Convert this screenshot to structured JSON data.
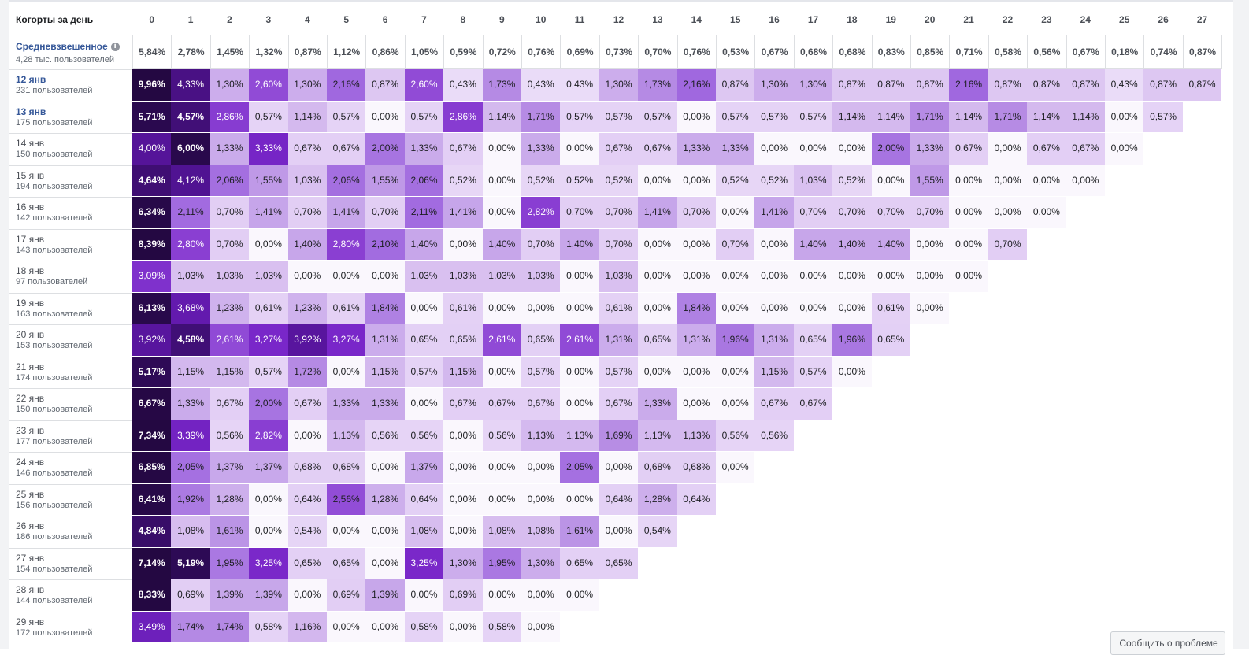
{
  "header": {
    "title": "Когорты за день",
    "columns": [
      "0",
      "1",
      "2",
      "3",
      "4",
      "5",
      "6",
      "7",
      "8",
      "9",
      "10",
      "11",
      "12",
      "13",
      "14",
      "15",
      "16",
      "17",
      "18",
      "19",
      "20",
      "21",
      "22",
      "23",
      "24",
      "25",
      "26",
      "27"
    ]
  },
  "average": {
    "title": "Средневзвешенное",
    "subtitle": "4,28 тыс. пользователей",
    "values": [
      "5,84%",
      "2,78%",
      "1,45%",
      "1,32%",
      "0,87%",
      "1,12%",
      "0,86%",
      "1,05%",
      "0,59%",
      "0,72%",
      "0,76%",
      "0,69%",
      "0,73%",
      "0,70%",
      "0,76%",
      "0,53%",
      "0,67%",
      "0,68%",
      "0,68%",
      "0,83%",
      "0,85%",
      "0,71%",
      "0,58%",
      "0,56%",
      "0,67%",
      "0,18%",
      "0,74%",
      "0,87%"
    ]
  },
  "cohorts": [
    {
      "date": "12 янв",
      "users": "231 пользователей",
      "link": true,
      "values": [
        "9,96%",
        "4,33%",
        "1,30%",
        "2,60%",
        "1,30%",
        "2,16%",
        "0,87%",
        "2,60%",
        "0,43%",
        "1,73%",
        "0,43%",
        "0,43%",
        "1,30%",
        "1,73%",
        "2,16%",
        "0,87%",
        "1,30%",
        "1,30%",
        "0,87%",
        "0,87%",
        "0,87%",
        "2,16%",
        "0,87%",
        "0,87%",
        "0,87%",
        "0,43%",
        "0,87%",
        "0,87%"
      ]
    },
    {
      "date": "13 янв",
      "users": "175 пользователей",
      "link": true,
      "values": [
        "5,71%",
        "4,57%",
        "2,86%",
        "0,57%",
        "1,14%",
        "0,57%",
        "0,00%",
        "0,57%",
        "2,86%",
        "1,14%",
        "1,71%",
        "0,57%",
        "0,57%",
        "0,57%",
        "0,00%",
        "0,57%",
        "0,57%",
        "0,57%",
        "1,14%",
        "1,14%",
        "1,71%",
        "1,14%",
        "1,71%",
        "1,14%",
        "1,14%",
        "0,00%",
        "0,57%"
      ]
    },
    {
      "date": "14 янв",
      "users": "150 пользователей",
      "link": false,
      "values": [
        "4,00%",
        "6,00%",
        "1,33%",
        "3,33%",
        "0,67%",
        "0,67%",
        "2,00%",
        "1,33%",
        "0,67%",
        "0,00%",
        "1,33%",
        "0,00%",
        "0,67%",
        "0,67%",
        "1,33%",
        "1,33%",
        "0,00%",
        "0,00%",
        "0,00%",
        "2,00%",
        "1,33%",
        "0,67%",
        "0,00%",
        "0,67%",
        "0,67%",
        "0,00%"
      ]
    },
    {
      "date": "15 янв",
      "users": "194 пользователей",
      "link": false,
      "values": [
        "4,64%",
        "4,12%",
        "2,06%",
        "1,55%",
        "1,03%",
        "2,06%",
        "1,55%",
        "2,06%",
        "0,52%",
        "0,00%",
        "0,52%",
        "0,52%",
        "0,52%",
        "0,00%",
        "0,00%",
        "0,52%",
        "0,52%",
        "1,03%",
        "0,52%",
        "0,00%",
        "1,55%",
        "0,00%",
        "0,00%",
        "0,00%",
        "0,00%"
      ]
    },
    {
      "date": "16 янв",
      "users": "142 пользователей",
      "link": false,
      "values": [
        "6,34%",
        "2,11%",
        "0,70%",
        "1,41%",
        "0,70%",
        "1,41%",
        "0,70%",
        "2,11%",
        "1,41%",
        "0,00%",
        "2,82%",
        "0,70%",
        "0,70%",
        "1,41%",
        "0,70%",
        "0,00%",
        "1,41%",
        "0,70%",
        "0,70%",
        "0,70%",
        "0,70%",
        "0,00%",
        "0,00%",
        "0,00%"
      ]
    },
    {
      "date": "17 янв",
      "users": "143 пользователей",
      "link": false,
      "values": [
        "8,39%",
        "2,80%",
        "0,70%",
        "0,00%",
        "1,40%",
        "2,80%",
        "2,10%",
        "1,40%",
        "0,00%",
        "1,40%",
        "0,70%",
        "1,40%",
        "0,70%",
        "0,00%",
        "0,00%",
        "0,70%",
        "0,00%",
        "1,40%",
        "1,40%",
        "1,40%",
        "0,00%",
        "0,00%",
        "0,70%"
      ]
    },
    {
      "date": "18 янв",
      "users": "97 пользователей",
      "link": false,
      "values": [
        "3,09%",
        "1,03%",
        "1,03%",
        "1,03%",
        "0,00%",
        "0,00%",
        "0,00%",
        "1,03%",
        "1,03%",
        "1,03%",
        "1,03%",
        "0,00%",
        "1,03%",
        "0,00%",
        "0,00%",
        "0,00%",
        "0,00%",
        "0,00%",
        "0,00%",
        "0,00%",
        "0,00%",
        "0,00%"
      ]
    },
    {
      "date": "19 янв",
      "users": "163 пользователей",
      "link": false,
      "values": [
        "6,13%",
        "3,68%",
        "1,23%",
        "0,61%",
        "1,23%",
        "0,61%",
        "1,84%",
        "0,00%",
        "0,61%",
        "0,00%",
        "0,00%",
        "0,00%",
        "0,61%",
        "0,00%",
        "1,84%",
        "0,00%",
        "0,00%",
        "0,00%",
        "0,00%",
        "0,61%",
        "0,00%"
      ]
    },
    {
      "date": "20 янв",
      "users": "153 пользователей",
      "link": false,
      "values": [
        "3,92%",
        "4,58%",
        "2,61%",
        "3,27%",
        "3,92%",
        "3,27%",
        "1,31%",
        "0,65%",
        "0,65%",
        "2,61%",
        "0,65%",
        "2,61%",
        "1,31%",
        "0,65%",
        "1,31%",
        "1,96%",
        "1,31%",
        "0,65%",
        "1,96%",
        "0,65%"
      ]
    },
    {
      "date": "21 янв",
      "users": "174 пользователей",
      "link": false,
      "values": [
        "5,17%",
        "1,15%",
        "1,15%",
        "0,57%",
        "1,72%",
        "0,00%",
        "1,15%",
        "0,57%",
        "1,15%",
        "0,00%",
        "0,57%",
        "0,00%",
        "0,57%",
        "0,00%",
        "0,00%",
        "0,00%",
        "1,15%",
        "0,57%",
        "0,00%"
      ]
    },
    {
      "date": "22 янв",
      "users": "150 пользователей",
      "link": false,
      "values": [
        "6,67%",
        "1,33%",
        "0,67%",
        "2,00%",
        "0,67%",
        "1,33%",
        "1,33%",
        "0,00%",
        "0,67%",
        "0,67%",
        "0,67%",
        "0,00%",
        "0,67%",
        "1,33%",
        "0,00%",
        "0,00%",
        "0,67%",
        "0,67%"
      ]
    },
    {
      "date": "23 янв",
      "users": "177 пользователей",
      "link": false,
      "values": [
        "7,34%",
        "3,39%",
        "0,56%",
        "2,82%",
        "0,00%",
        "1,13%",
        "0,56%",
        "0,56%",
        "0,00%",
        "0,56%",
        "1,13%",
        "1,13%",
        "1,69%",
        "1,13%",
        "1,13%",
        "0,56%",
        "0,56%"
      ]
    },
    {
      "date": "24 янв",
      "users": "146 пользователей",
      "link": false,
      "values": [
        "6,85%",
        "2,05%",
        "1,37%",
        "1,37%",
        "0,68%",
        "0,68%",
        "0,00%",
        "1,37%",
        "0,00%",
        "0,00%",
        "0,00%",
        "2,05%",
        "0,00%",
        "0,68%",
        "0,68%",
        "0,00%"
      ]
    },
    {
      "date": "25 янв",
      "users": "156 пользователей",
      "link": false,
      "values": [
        "6,41%",
        "1,92%",
        "1,28%",
        "0,00%",
        "0,64%",
        "2,56%",
        "1,28%",
        "0,64%",
        "0,00%",
        "0,00%",
        "0,00%",
        "0,00%",
        "0,64%",
        "1,28%",
        "0,64%"
      ]
    },
    {
      "date": "26 янв",
      "users": "186 пользователей",
      "link": false,
      "values": [
        "4,84%",
        "1,08%",
        "1,61%",
        "0,00%",
        "0,54%",
        "0,00%",
        "0,00%",
        "1,08%",
        "0,00%",
        "1,08%",
        "1,08%",
        "1,61%",
        "0,00%",
        "0,54%"
      ]
    },
    {
      "date": "27 янв",
      "users": "154 пользователей",
      "link": false,
      "values": [
        "7,14%",
        "5,19%",
        "1,95%",
        "3,25%",
        "0,65%",
        "0,65%",
        "0,00%",
        "3,25%",
        "1,30%",
        "1,95%",
        "1,30%",
        "0,65%",
        "0,65%"
      ]
    },
    {
      "date": "28 янв",
      "users": "144 пользователей",
      "link": false,
      "values": [
        "8,33%",
        "0,69%",
        "1,39%",
        "1,39%",
        "0,00%",
        "0,69%",
        "1,39%",
        "0,00%",
        "0,69%",
        "0,00%",
        "0,00%",
        "0,00%"
      ]
    },
    {
      "date": "29 янв",
      "users": "172 пользователей",
      "link": false,
      "values": [
        "3,49%",
        "1,74%",
        "1,74%",
        "0,58%",
        "1,16%",
        "0,00%",
        "0,00%",
        "0,58%",
        "0,00%",
        "0,58%",
        "0,00%"
      ]
    }
  ],
  "footer": {
    "report_label": "Сообщить о проблеме"
  }
}
